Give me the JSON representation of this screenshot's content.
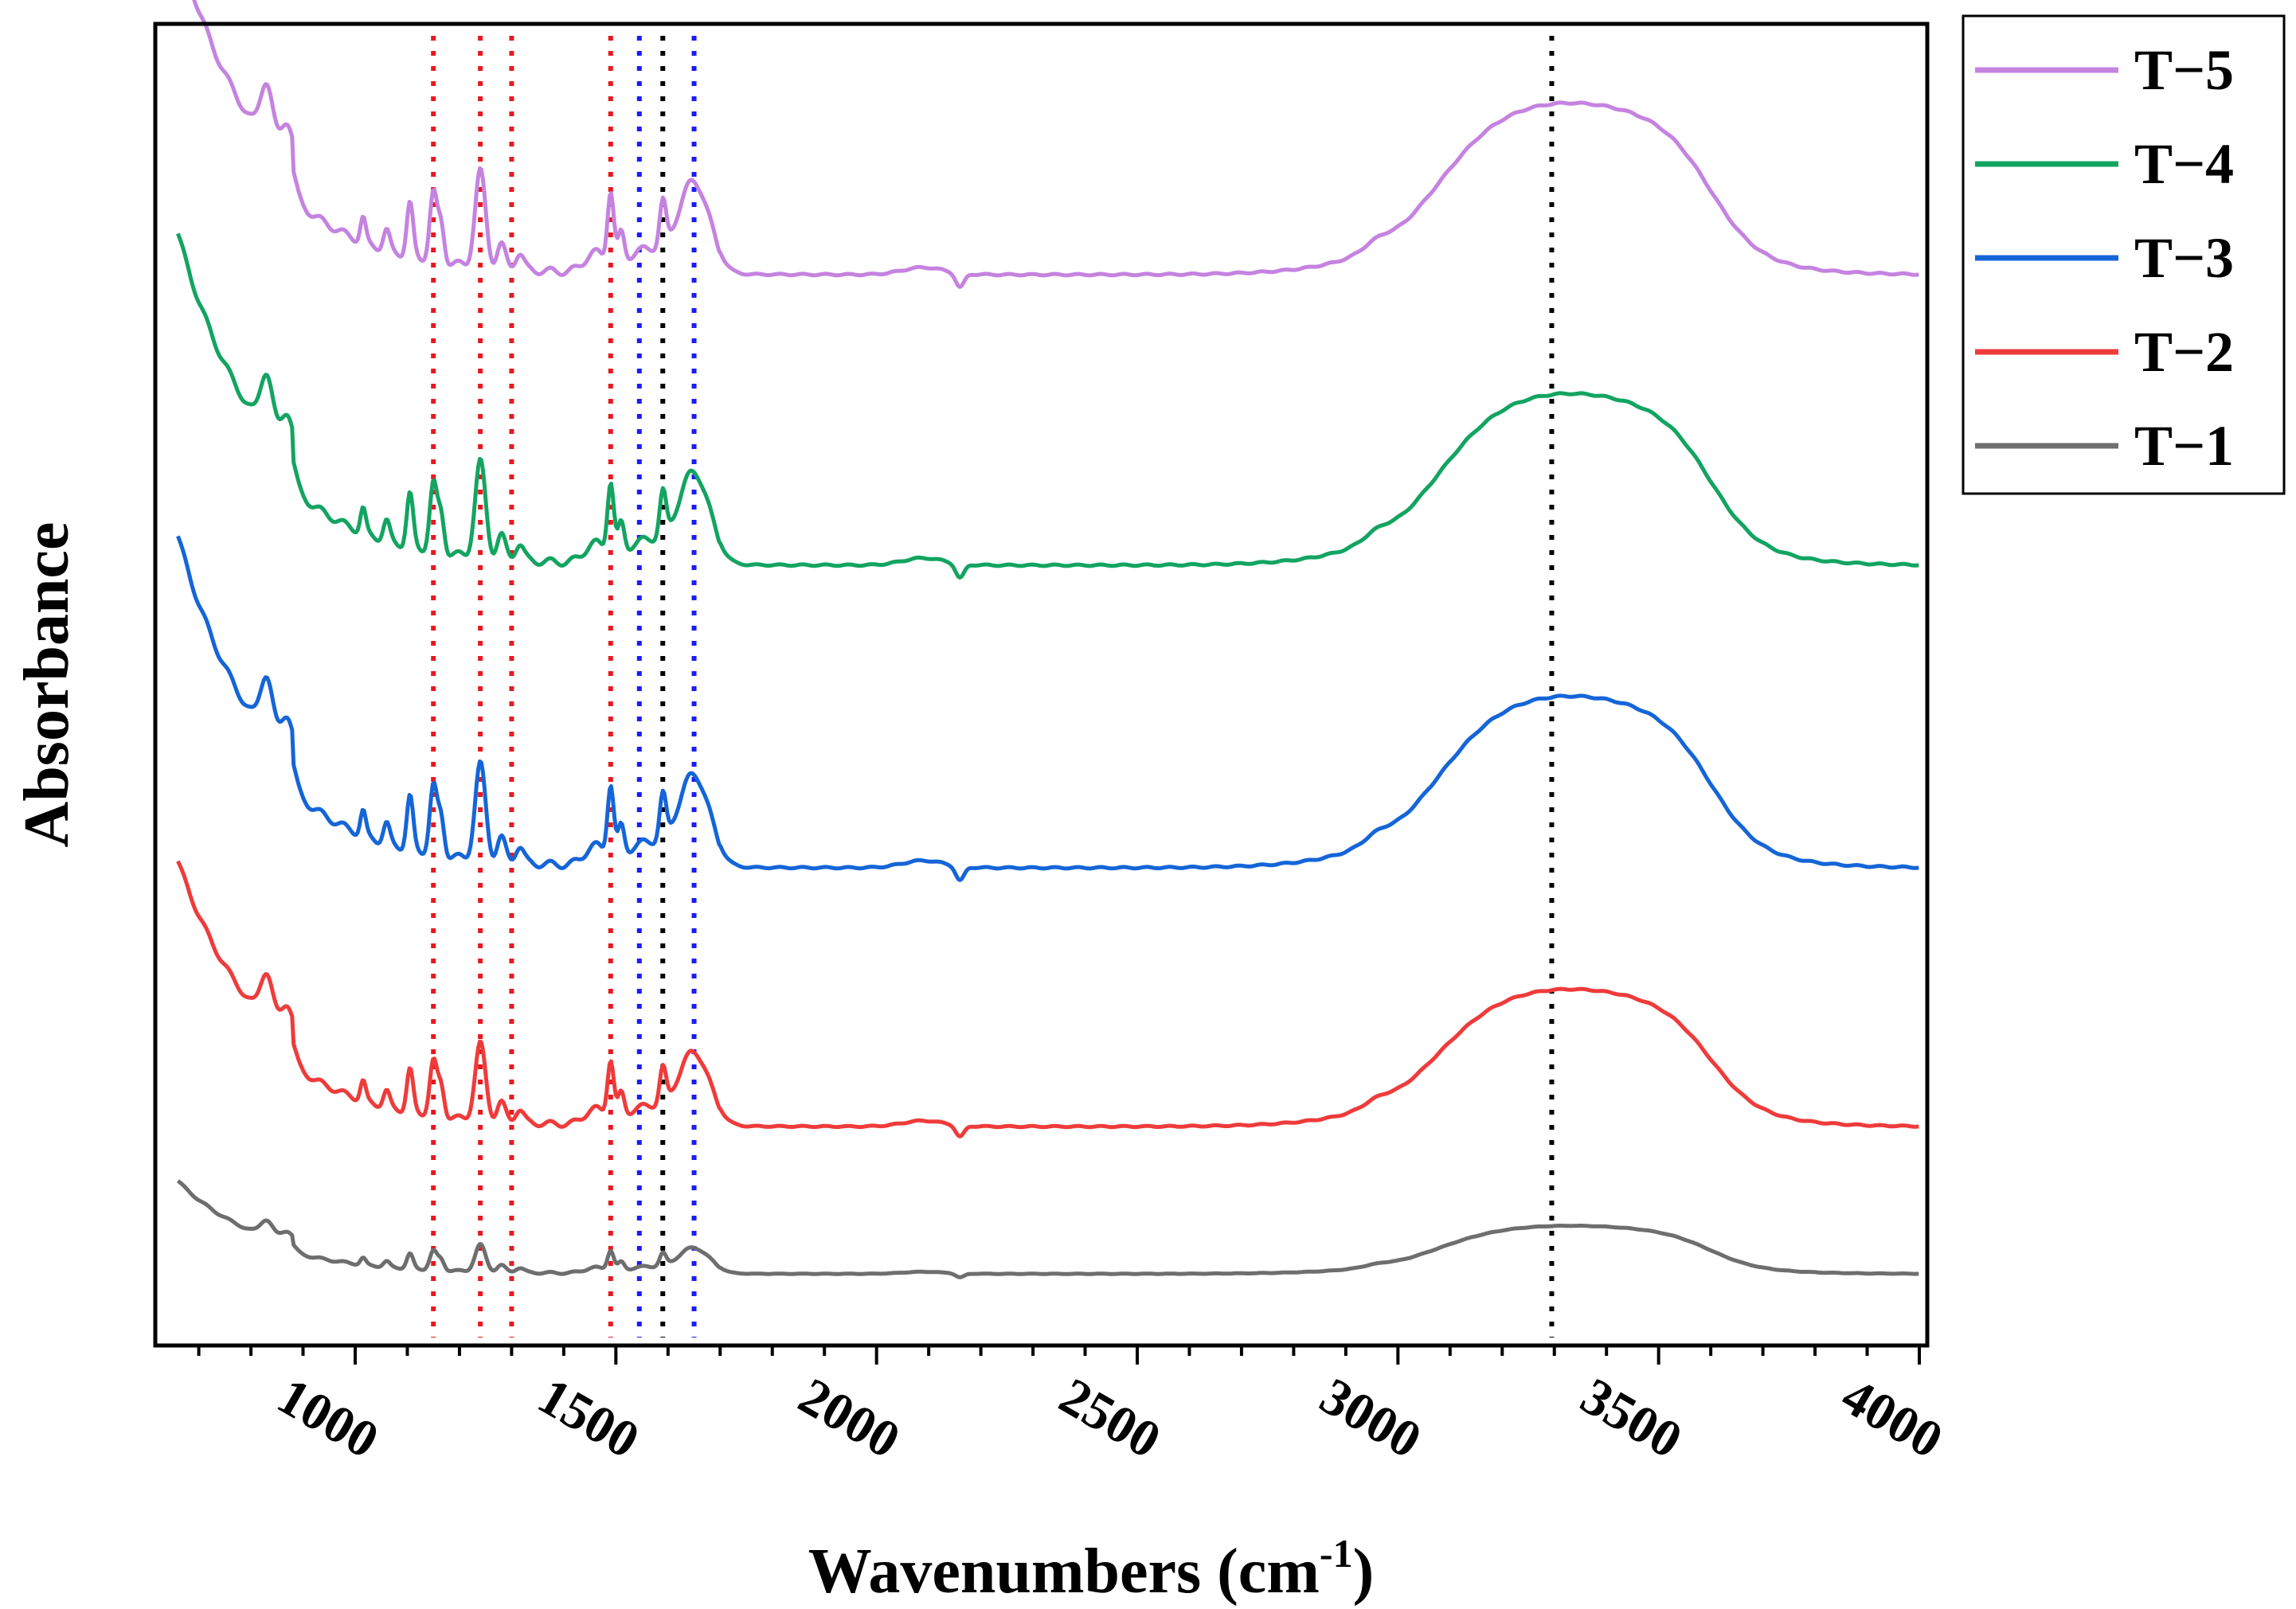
{
  "chart_data": {
    "type": "line",
    "xlabel_main": "Wavenumbers (cm",
    "xlabel_sup": "-1",
    "xlabel_close": ")",
    "ylabel": "Absorbance",
    "xlim": [
      650,
      4000
    ],
    "x_ticks_major": [
      1000,
      1500,
      2000,
      2500,
      3000,
      3500,
      4000
    ],
    "x_tick_labels": [
      "1000",
      "1500",
      "2000",
      "2500",
      "3000",
      "3500",
      "4000"
    ],
    "y_ticks": "none",
    "grid": false,
    "legend_position": "top-right outside plot",
    "reference_lines": [
      {
        "x": 1150,
        "color": "#e8191e"
      },
      {
        "x": 1240,
        "color": "#e8191e"
      },
      {
        "x": 1300,
        "color": "#e8191e"
      },
      {
        "x": 1490,
        "color": "#e8191e"
      },
      {
        "x": 1545,
        "color": "#1a1aff"
      },
      {
        "x": 1590,
        "color": "#000000"
      },
      {
        "x": 1650,
        "color": "#1a1aff"
      },
      {
        "x": 3295,
        "color": "#000000"
      }
    ],
    "series": [
      {
        "name": "T−5",
        "color": "#c583e0",
        "offset": 4,
        "scale": 1.0
      },
      {
        "name": "T−4",
        "color": "#13a461",
        "offset": 3,
        "scale": 1.0
      },
      {
        "name": "T−3",
        "color": "#1565d8",
        "offset": 2,
        "scale": 1.0
      },
      {
        "name": "T−2",
        "color": "#ef3b3b",
        "offset": 1,
        "scale": 0.8
      },
      {
        "name": "T−1",
        "color": "#6e6e6e",
        "offset": 0,
        "scale": 0.28
      }
    ]
  }
}
